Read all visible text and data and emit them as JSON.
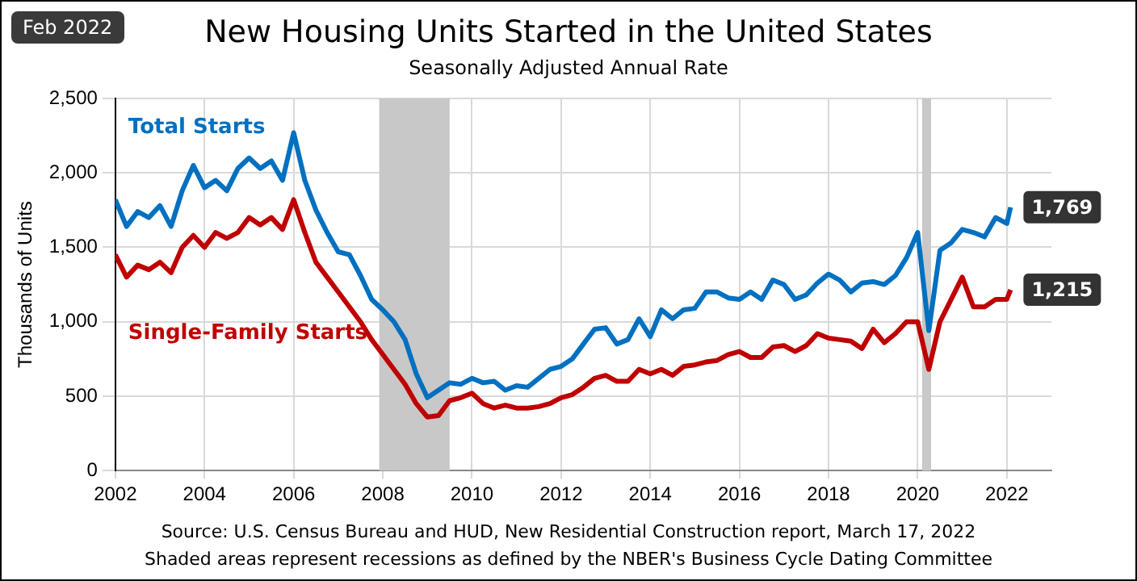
{
  "chart_data": {
    "type": "line",
    "title": "New Housing Units Started in the United States",
    "subtitle": "Seasonally Adjusted Annual Rate",
    "ylabel": "Thousands of Units",
    "annotations": [
      "Feb 2022",
      "Source:  U.S. Census Bureau and HUD, New  Residential Construction report, March 17, 2022",
      "Shaded areas represent recessions as defined by the NBER's  Business Cycle Dating Committee"
    ],
    "x": [
      2002,
      2002.25,
      2002.5,
      2002.75,
      2003,
      2003.25,
      2003.5,
      2003.75,
      2004,
      2004.25,
      2004.5,
      2004.75,
      2005,
      2005.25,
      2005.5,
      2005.75,
      2006,
      2006.25,
      2006.5,
      2006.75,
      2007,
      2007.25,
      2007.5,
      2007.75,
      2008,
      2008.25,
      2008.5,
      2008.75,
      2009,
      2009.25,
      2009.5,
      2009.75,
      2010,
      2010.25,
      2010.5,
      2010.75,
      2011,
      2011.25,
      2011.5,
      2011.75,
      2012,
      2012.25,
      2012.5,
      2012.75,
      2013,
      2013.25,
      2013.5,
      2013.75,
      2014,
      2014.25,
      2014.5,
      2014.75,
      2015,
      2015.25,
      2015.5,
      2015.75,
      2016,
      2016.25,
      2016.5,
      2016.75,
      2017,
      2017.25,
      2017.5,
      2017.75,
      2018,
      2018.25,
      2018.5,
      2018.75,
      2019,
      2019.25,
      2019.5,
      2019.75,
      2020,
      2020.25,
      2020.5,
      2020.75,
      2021,
      2021.25,
      2021.5,
      2021.75,
      2022,
      2022.083
    ],
    "series": [
      {
        "name": "Total Starts",
        "color": "#0070c0",
        "values": [
          1820,
          1640,
          1740,
          1700,
          1780,
          1640,
          1880,
          2050,
          1900,
          1950,
          1880,
          2030,
          2100,
          2030,
          2080,
          1950,
          2270,
          1950,
          1750,
          1600,
          1470,
          1450,
          1310,
          1150,
          1080,
          1000,
          880,
          650,
          490,
          540,
          590,
          580,
          620,
          590,
          600,
          540,
          570,
          560,
          620,
          680,
          700,
          750,
          850,
          950,
          960,
          850,
          880,
          1020,
          900,
          1080,
          1020,
          1080,
          1090,
          1200,
          1200,
          1160,
          1150,
          1200,
          1150,
          1280,
          1250,
          1150,
          1180,
          1260,
          1320,
          1280,
          1200,
          1260,
          1270,
          1250,
          1310,
          1430,
          1600,
          940,
          1480,
          1530,
          1620,
          1600,
          1570,
          1700,
          1660,
          1769
        ],
        "value_labels": [
          null,
          null,
          null,
          null,
          null,
          null,
          null,
          null,
          null,
          null,
          null,
          null,
          null,
          null,
          null,
          null,
          null,
          null,
          null,
          null,
          null,
          null,
          null,
          null,
          null,
          null,
          null,
          null,
          null,
          null,
          null,
          null,
          null,
          null,
          null,
          null,
          null,
          null,
          null,
          null,
          null,
          null,
          null,
          null,
          null,
          null,
          null,
          null,
          null,
          null,
          null,
          null,
          null,
          null,
          null,
          null,
          null,
          null,
          null,
          null,
          null,
          null,
          null,
          null,
          null,
          null,
          null,
          null,
          null,
          null,
          null,
          null,
          null,
          null,
          null,
          null,
          null,
          null,
          null,
          null,
          null,
          "1,769"
        ]
      },
      {
        "name": "Single-Family Starts",
        "color": "#c00000",
        "values": [
          1450,
          1300,
          1380,
          1350,
          1400,
          1330,
          1500,
          1580,
          1500,
          1600,
          1560,
          1600,
          1700,
          1650,
          1700,
          1620,
          1820,
          1600,
          1400,
          1300,
          1200,
          1100,
          1000,
          880,
          780,
          680,
          580,
          450,
          360,
          370,
          470,
          490,
          520,
          450,
          420,
          440,
          420,
          420,
          430,
          450,
          490,
          510,
          560,
          620,
          640,
          600,
          600,
          680,
          650,
          680,
          640,
          700,
          710,
          730,
          740,
          780,
          800,
          760,
          760,
          830,
          840,
          800,
          840,
          920,
          890,
          880,
          870,
          820,
          950,
          860,
          920,
          1000,
          1000,
          680,
          1000,
          1150,
          1300,
          1100,
          1100,
          1150,
          1150,
          1215
        ],
        "value_labels": [
          null,
          null,
          null,
          null,
          null,
          null,
          null,
          null,
          null,
          null,
          null,
          null,
          null,
          null,
          null,
          null,
          null,
          null,
          null,
          null,
          null,
          null,
          null,
          null,
          null,
          null,
          null,
          null,
          null,
          null,
          null,
          null,
          null,
          null,
          null,
          null,
          null,
          null,
          null,
          null,
          null,
          null,
          null,
          null,
          null,
          null,
          null,
          null,
          null,
          null,
          null,
          null,
          null,
          null,
          null,
          null,
          null,
          null,
          null,
          null,
          null,
          null,
          null,
          null,
          null,
          null,
          null,
          null,
          null,
          null,
          null,
          null,
          null,
          null,
          null,
          null,
          null,
          null,
          null,
          null,
          null,
          "1,215"
        ]
      }
    ],
    "xlim": [
      2002,
      2023
    ],
    "xticks": [
      2002,
      2004,
      2006,
      2008,
      2010,
      2012,
      2014,
      2016,
      2018,
      2020,
      2022
    ],
    "ylim": [
      0,
      2500
    ],
    "yticks": [
      0,
      500,
      {
        "value": 1000,
        "label": "1,000"
      },
      {
        "value": 1500,
        "label": "1,500"
      },
      {
        "value": 2000,
        "label": "2,000"
      },
      {
        "value": 2500,
        "label": "2,500"
      }
    ],
    "bands": [
      {
        "axis": "x",
        "from": 2007.92,
        "to": 2009.5,
        "color": "#c8c8c8"
      },
      {
        "axis": "x",
        "from": 2020.1,
        "to": 2020.3,
        "color": "#c8c8c8"
      }
    ],
    "grid": true,
    "legend": false,
    "marker": "none",
    "line_style": "solid"
  }
}
